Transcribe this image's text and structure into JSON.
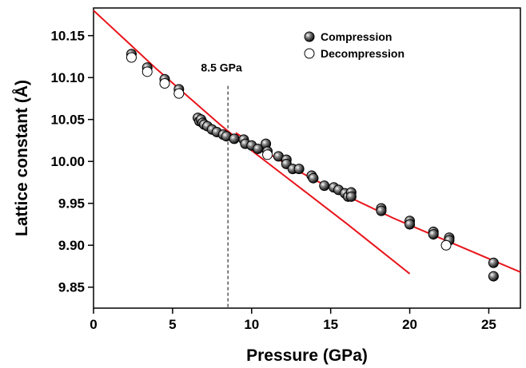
{
  "chart_data": {
    "type": "scatter",
    "x_label": "Pressure (GPa)",
    "y_label": "Lattice constant (Å)",
    "xlim": [
      0,
      27
    ],
    "ylim": [
      9.825,
      10.183
    ],
    "xticks": [
      0,
      5,
      10,
      15,
      20,
      25
    ],
    "yticks": [
      9.85,
      {
        "value": 9.9,
        "label": "9.90"
      },
      9.95,
      {
        "value": 10,
        "label": "10.00"
      },
      10.05,
      {
        "value": 10.1,
        "label": "10.10"
      },
      10.15
    ],
    "legend": "top-right",
    "annotation": {
      "text": "8.5 GPa",
      "x": 8.5,
      "y_top": 10.09
    },
    "series": [
      {
        "name": "Compression",
        "kind": "filled",
        "color": "#000000",
        "x": [
          2.4,
          3.4,
          4.5,
          5.4,
          6.6,
          6.7,
          6.8,
          6.9,
          7.0,
          7.2,
          7.5,
          7.8,
          8.2,
          8.4,
          8.9,
          9.5,
          9.6,
          10.0,
          10.4,
          10.9,
          11.0,
          11.7,
          12.2,
          12.2,
          12.6,
          13.0,
          13.8,
          13.9,
          14.6,
          15.2,
          15.5,
          15.9,
          16.1,
          16.3,
          16.3,
          18.2,
          18.2,
          20.0,
          20.0,
          21.5,
          21.5,
          22.5,
          22.5,
          25.3,
          25.3
        ],
        "values": [
          10.128,
          10.112,
          10.098,
          10.086,
          10.052,
          10.048,
          10.05,
          10.046,
          10.044,
          10.042,
          10.038,
          10.035,
          10.032,
          10.03,
          10.027,
          10.026,
          10.021,
          10.019,
          10.015,
          10.021,
          10.012,
          10.006,
          10.002,
          9.997,
          9.991,
          9.991,
          9.983,
          9.98,
          9.971,
          9.969,
          9.966,
          9.962,
          9.958,
          9.963,
          9.958,
          9.944,
          9.941,
          9.929,
          9.925,
          9.916,
          9.913,
          9.909,
          9.906,
          9.879,
          9.863
        ]
      },
      {
        "name": "Decompression",
        "kind": "open",
        "color": "#000000",
        "x": [
          2.4,
          3.4,
          4.5,
          5.4,
          11.0,
          22.3
        ],
        "values": [
          10.124,
          10.107,
          10.093,
          10.081,
          10.008,
          9.9
        ]
      }
    ],
    "fit_lines": [
      {
        "color": "#e8141b",
        "x": [
          0,
          2,
          4,
          6,
          8,
          10,
          12,
          14,
          16,
          18,
          20
        ],
        "values": [
          10.18,
          10.145,
          10.11,
          10.077,
          10.044,
          10.013,
          9.984,
          9.955,
          9.926,
          9.896,
          9.866
        ]
      },
      {
        "color": "#e8141b",
        "x": [
          9,
          11,
          13,
          15,
          17,
          19,
          21,
          23,
          25,
          27
        ],
        "values": [
          10.034,
          10.01,
          9.988,
          9.968,
          9.95,
          9.932,
          9.916,
          9.9,
          9.884,
          9.868
        ]
      }
    ]
  }
}
